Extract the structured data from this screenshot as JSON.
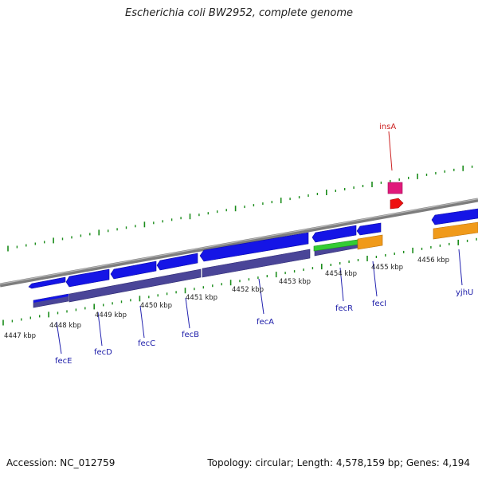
{
  "title": "Escherichia coli BW2952, complete genome",
  "footer": {
    "accession": "Accession: NC_012759",
    "summary": "Topology: circular; Length: 4,578,159 bp; Genes: 4,194"
  },
  "colors": {
    "forward_cds": "#1515e6",
    "reverse_cds": "#4a4598",
    "green_feature": "#33cc33",
    "orange_feature": "#f09a1a",
    "insA_feature": "#e01a7a",
    "red_feature": "#ee1111",
    "tick_color": "#1a8c1a",
    "backbone": "#808080",
    "label_blue": "#1a1aa8",
    "label_red": "#cc2222"
  },
  "ruler": {
    "labels": [
      "4447 kbp",
      "4448 kbp",
      "4449 kbp",
      "4450 kbp",
      "4451 kbp",
      "4452 kbp",
      "4453 kbp",
      "4454 kbp",
      "4455 kbp",
      "4456 kbp"
    ]
  },
  "genes": [
    {
      "name": "fecE",
      "color": "label_blue"
    },
    {
      "name": "fecD",
      "color": "label_blue"
    },
    {
      "name": "fecC",
      "color": "label_blue"
    },
    {
      "name": "fecB",
      "color": "label_blue"
    },
    {
      "name": "fecA",
      "color": "label_blue"
    },
    {
      "name": "fecR",
      "color": "label_blue"
    },
    {
      "name": "fecI",
      "color": "label_blue"
    },
    {
      "name": "yjhU",
      "color": "label_blue"
    },
    {
      "name": "insA",
      "color": "label_red"
    }
  ]
}
